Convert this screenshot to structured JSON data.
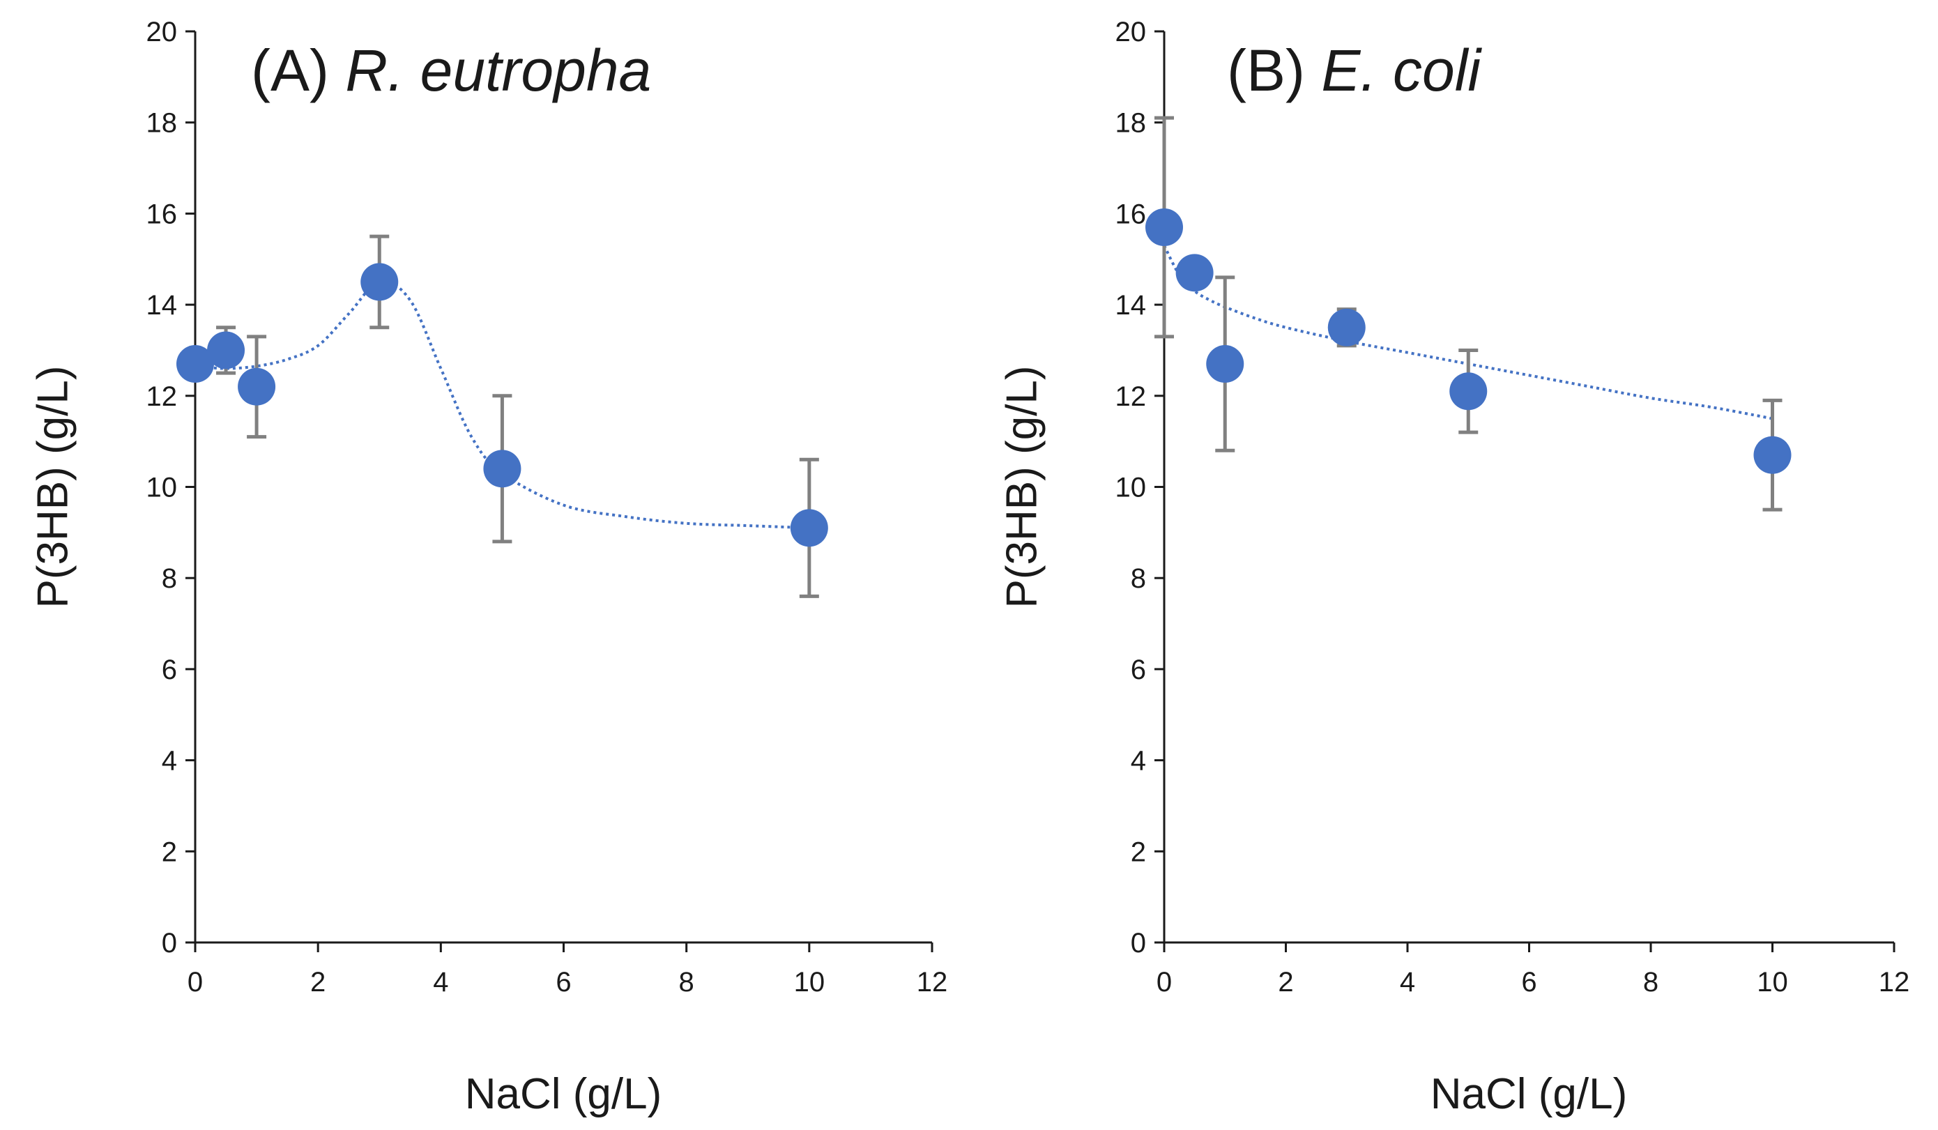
{
  "chart_data": [
    {
      "type": "scatter",
      "panel": "A",
      "title_label": "(A)",
      "title_organism": "R. eutropha",
      "xlabel": "NaCl (g/L)",
      "ylabel": "P(3HB)  (g/L)",
      "xlim": [
        0,
        12
      ],
      "ylim": [
        0,
        20
      ],
      "xticks": [
        0,
        2,
        4,
        6,
        8,
        10,
        12
      ],
      "yticks": [
        0,
        2,
        4,
        6,
        8,
        10,
        12,
        14,
        16,
        18,
        20
      ],
      "series": [
        {
          "name": "P(3HB)",
          "x": [
            0,
            0.5,
            1,
            3,
            5,
            10
          ],
          "y": [
            12.7,
            13.0,
            12.2,
            14.5,
            10.4,
            9.1
          ],
          "err": [
            0.3,
            0.5,
            1.1,
            1.0,
            1.6,
            1.5
          ]
        }
      ],
      "trendline": {
        "style": "dotted",
        "x": [
          0,
          0.5,
          1,
          1.5,
          2,
          2.5,
          3,
          3.5,
          4,
          4.5,
          5,
          6,
          7,
          8,
          9,
          10
        ],
        "y": [
          12.65,
          12.6,
          12.65,
          12.8,
          13.1,
          13.8,
          14.5,
          14.1,
          12.6,
          11.1,
          10.3,
          9.6,
          9.35,
          9.2,
          9.15,
          9.1
        ]
      },
      "colors": {
        "marker": "#4472C4",
        "errorbar": "#808080",
        "trendline": "#4472C4",
        "axis": "#1a1a1a"
      }
    },
    {
      "type": "scatter",
      "panel": "B",
      "title_label": "(B)",
      "title_organism": "E. coli",
      "xlabel": "NaCl (g/L)",
      "ylabel": "P(3HB)  (g/L)",
      "xlim": [
        0,
        12
      ],
      "ylim": [
        0,
        20
      ],
      "xticks": [
        0,
        2,
        4,
        6,
        8,
        10,
        12
      ],
      "yticks": [
        0,
        2,
        4,
        6,
        8,
        10,
        12,
        14,
        16,
        18,
        20
      ],
      "series": [
        {
          "name": "P(3HB)",
          "x": [
            0,
            0.5,
            1,
            3,
            5,
            10
          ],
          "y": [
            15.7,
            14.7,
            12.7,
            13.5,
            12.1,
            10.7
          ],
          "err": [
            2.4,
            0.3,
            1.9,
            0.4,
            0.9,
            1.2
          ]
        }
      ],
      "trendline": {
        "style": "dotted",
        "x": [
          0,
          0.25,
          0.5,
          0.75,
          1,
          1.5,
          2,
          3,
          4,
          5,
          6,
          7,
          8,
          9,
          10
        ],
        "y": [
          15.3,
          14.65,
          14.3,
          14.1,
          13.95,
          13.7,
          13.5,
          13.2,
          12.95,
          12.7,
          12.45,
          12.2,
          11.95,
          11.75,
          11.5
        ]
      },
      "colors": {
        "marker": "#4472C4",
        "errorbar": "#808080",
        "trendline": "#4472C4",
        "axis": "#1a1a1a"
      }
    }
  ]
}
